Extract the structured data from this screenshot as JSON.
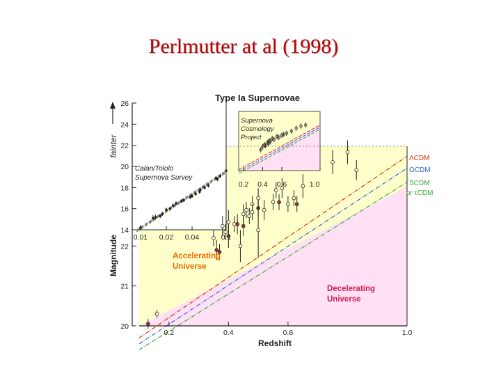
{
  "slide": {
    "title": "Perlmutter at al (1998)"
  },
  "chart_data": {
    "type": "scatter",
    "title": "Type Ia Supernovae",
    "xlabel": "Redshift",
    "ylabel": "Magnitude",
    "ylabel_arrow": "fainter",
    "colors": {
      "accelerating_region": "#ffffcc",
      "decelerating_region": "#ffe0f4",
      "lambda_cdm": "#cc3300",
      "open_cdm": "#3366cc",
      "einstein_de_sitter": "#33aa33",
      "axes": "#222222"
    },
    "main_panel": {
      "xlim": [
        0.1,
        1.0
      ],
      "x_tick_labels": [
        "0.2",
        "0.4",
        "0.6",
        "1.0"
      ],
      "x_tick_values": [
        0.2,
        0.4,
        0.6,
        1.0
      ],
      "ylim": [
        20,
        24.5
      ],
      "y_tick_labels": [
        "20",
        "21",
        "22"
      ],
      "y_tick_values": [
        20,
        21,
        22
      ],
      "region_labels": [
        {
          "line1": "Accelerating",
          "line2": "Universe"
        },
        {
          "line1": "Decelerating",
          "line2": "Universe"
        }
      ],
      "model_labels": [
        {
          "label": "ΛCDM",
          "color": "#cc3300"
        },
        {
          "label": "OCDM",
          "color": "#3366cc"
        },
        {
          "label": "SCDM",
          "color": "#33aa33"
        },
        {
          "label": "or τCDM",
          "color": "#33aa33"
        }
      ],
      "points": [
        {
          "z": 0.13,
          "m": 20.05,
          "err": 0.12,
          "filled": true
        },
        {
          "z": 0.16,
          "m": 20.3,
          "err": 0.1,
          "filled": false
        },
        {
          "z": 0.35,
          "m": 22.2,
          "err": 0.2,
          "filled": false
        },
        {
          "z": 0.36,
          "m": 21.9,
          "err": 0.25,
          "filled": true
        },
        {
          "z": 0.38,
          "m": 22.5,
          "err": 0.25,
          "filled": false
        },
        {
          "z": 0.39,
          "m": 22.35,
          "err": 0.2,
          "filled": false
        },
        {
          "z": 0.4,
          "m": 22.6,
          "err": 0.3,
          "filled": false
        },
        {
          "z": 0.42,
          "m": 22.55,
          "err": 0.2,
          "filled": false
        },
        {
          "z": 0.43,
          "m": 22.55,
          "err": 0.25,
          "filled": true
        },
        {
          "z": 0.45,
          "m": 22.8,
          "err": 0.25,
          "filled": false
        },
        {
          "z": 0.45,
          "m": 22.5,
          "err": 0.25,
          "filled": true
        },
        {
          "z": 0.46,
          "m": 22.9,
          "err": 0.2,
          "filled": false
        },
        {
          "z": 0.47,
          "m": 22.75,
          "err": 0.2,
          "filled": false
        },
        {
          "z": 0.48,
          "m": 23.05,
          "err": 0.2,
          "filled": false
        },
        {
          "z": 0.48,
          "m": 22.85,
          "err": 0.2,
          "filled": false
        },
        {
          "z": 0.5,
          "m": 23.2,
          "err": 0.25,
          "filled": false
        },
        {
          "z": 0.5,
          "m": 22.95,
          "err": 0.2,
          "filled": true
        },
        {
          "z": 0.52,
          "m": 22.9,
          "err": 0.25,
          "filled": false
        },
        {
          "z": 0.55,
          "m": 23.1,
          "err": 0.2,
          "filled": false
        },
        {
          "z": 0.56,
          "m": 23.4,
          "err": 0.2,
          "filled": false
        },
        {
          "z": 0.57,
          "m": 23.1,
          "err": 0.2,
          "filled": true
        },
        {
          "z": 0.58,
          "m": 23.45,
          "err": 0.25,
          "filled": false
        },
        {
          "z": 0.6,
          "m": 23.05,
          "err": 0.2,
          "filled": false
        },
        {
          "z": 0.62,
          "m": 23.2,
          "err": 0.2,
          "filled": false
        },
        {
          "z": 0.63,
          "m": 23.05,
          "err": 0.2,
          "filled": true
        },
        {
          "z": 0.65,
          "m": 23.5,
          "err": 0.3,
          "filled": false
        },
        {
          "z": 0.75,
          "m": 24.1,
          "err": 0.3,
          "filled": false
        },
        {
          "z": 0.8,
          "m": 24.35,
          "err": 0.3,
          "filled": false
        },
        {
          "z": 0.83,
          "m": 23.9,
          "err": 0.25,
          "filled": false
        },
        {
          "z": 0.5,
          "m": 22.4,
          "err": 0.7,
          "filled": false
        },
        {
          "z": 0.44,
          "m": 22.0,
          "err": 0.4,
          "filled": false
        },
        {
          "z": 0.4,
          "m": 22.25,
          "err": 0.3,
          "filled": true
        },
        {
          "z": 0.37,
          "m": 21.85,
          "err": 0.2,
          "filled": true
        }
      ]
    },
    "lowz_inset": {
      "x_tick_labels": [
        "0.01",
        "0.02",
        "0.04",
        "0.1"
      ],
      "x_tick_values": [
        0.01,
        0.02,
        0.04,
        0.1
      ],
      "xlim": [
        0.008,
        0.1
      ],
      "y_tick_labels": [
        "14",
        "16",
        "18",
        "20",
        "22",
        "24",
        "26"
      ],
      "y_tick_values": [
        14,
        16,
        18,
        20,
        22,
        24,
        26
      ],
      "ylim": [
        14,
        26
      ],
      "label_line1": "Calan/Tololo",
      "label_line2": "Supernova Survey",
      "points": [
        {
          "z": 0.01,
          "m": 14.2,
          "err": 0.25
        },
        {
          "z": 0.014,
          "m": 15.1,
          "err": 0.3
        },
        {
          "z": 0.015,
          "m": 15.2,
          "err": 0.25
        },
        {
          "z": 0.017,
          "m": 15.3,
          "err": 0.2
        },
        {
          "z": 0.018,
          "m": 15.5,
          "err": 0.2
        },
        {
          "z": 0.02,
          "m": 15.9,
          "err": 0.2
        },
        {
          "z": 0.022,
          "m": 16.0,
          "err": 0.2
        },
        {
          "z": 0.024,
          "m": 16.3,
          "err": 0.2
        },
        {
          "z": 0.026,
          "m": 16.5,
          "err": 0.2
        },
        {
          "z": 0.03,
          "m": 16.7,
          "err": 0.2
        },
        {
          "z": 0.032,
          "m": 16.8,
          "err": 0.2
        },
        {
          "z": 0.038,
          "m": 17.1,
          "err": 0.2
        },
        {
          "z": 0.04,
          "m": 17.2,
          "err": 0.2
        },
        {
          "z": 0.044,
          "m": 17.4,
          "err": 0.2
        },
        {
          "z": 0.049,
          "m": 17.6,
          "err": 0.2
        },
        {
          "z": 0.05,
          "m": 17.8,
          "err": 0.2
        },
        {
          "z": 0.056,
          "m": 18.0,
          "err": 0.2
        },
        {
          "z": 0.062,
          "m": 18.2,
          "err": 0.2
        },
        {
          "z": 0.076,
          "m": 18.9,
          "err": 0.2
        },
        {
          "z": 0.079,
          "m": 18.8,
          "err": 0.2
        },
        {
          "z": 0.085,
          "m": 19.1,
          "err": 0.2
        },
        {
          "z": 0.1,
          "m": 19.6,
          "err": 0.2
        }
      ]
    },
    "highz_inset": {
      "x_tick_labels": [
        "0.2",
        "0.4",
        "0.6",
        "1.0"
      ],
      "x_tick_values": [
        0.2,
        0.4,
        0.6,
        1.0
      ],
      "xlim": [
        0.15,
        1.0
      ],
      "label_line1": "Supernova",
      "label_line2": "Cosmology",
      "label_line3": "Project",
      "points": [
        {
          "z": 0.38,
          "m": 22.0
        },
        {
          "z": 0.4,
          "m": 22.3
        },
        {
          "z": 0.42,
          "m": 22.5
        },
        {
          "z": 0.43,
          "m": 22.4
        },
        {
          "z": 0.45,
          "m": 22.7
        },
        {
          "z": 0.46,
          "m": 22.6
        },
        {
          "z": 0.47,
          "m": 22.9
        },
        {
          "z": 0.48,
          "m": 22.8
        },
        {
          "z": 0.5,
          "m": 23.1
        },
        {
          "z": 0.52,
          "m": 23.0
        },
        {
          "z": 0.55,
          "m": 23.3
        },
        {
          "z": 0.57,
          "m": 23.2
        },
        {
          "z": 0.6,
          "m": 23.4
        },
        {
          "z": 0.62,
          "m": 23.5
        },
        {
          "z": 0.65,
          "m": 23.6
        },
        {
          "z": 0.7,
          "m": 23.8
        },
        {
          "z": 0.75,
          "m": 24.1
        },
        {
          "z": 0.8,
          "m": 24.3
        },
        {
          "z": 0.85,
          "m": 24.4
        }
      ]
    }
  }
}
